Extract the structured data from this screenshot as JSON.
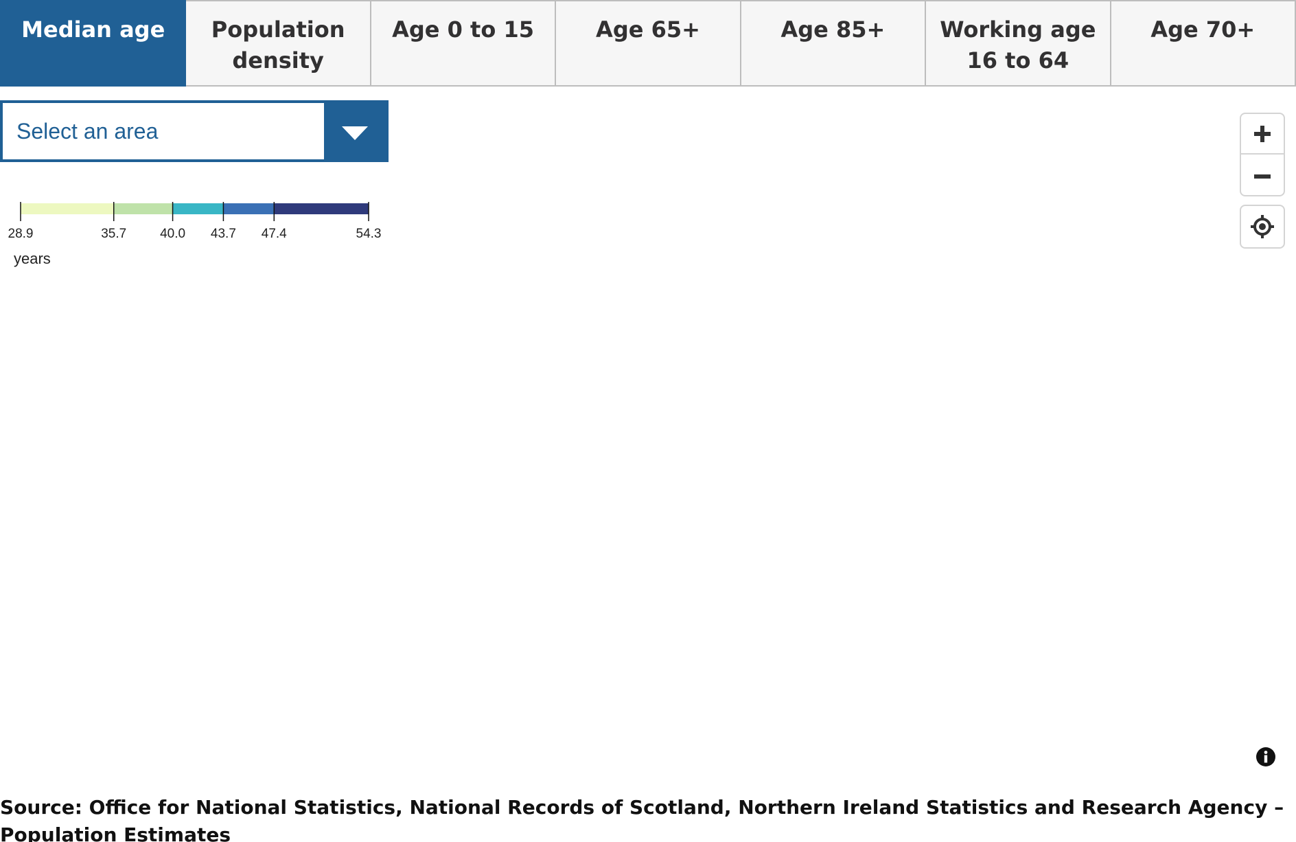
{
  "tabs": [
    {
      "label": "Median age",
      "active": true
    },
    {
      "label": "Population density",
      "active": false
    },
    {
      "label": "Age 0 to 15",
      "active": false
    },
    {
      "label": "Age 65+",
      "active": false
    },
    {
      "label": "Age 85+",
      "active": false
    },
    {
      "label": "Working age 16 to 64",
      "active": false
    },
    {
      "label": "Age 70+",
      "active": false
    }
  ],
  "area_select": {
    "placeholder": "Select an area"
  },
  "legend": {
    "breaks": [
      28.9,
      35.7,
      40.0,
      43.7,
      47.4,
      54.3
    ],
    "break_labels": [
      "28.9",
      "35.7",
      "40.0",
      "43.7",
      "47.4",
      "54.3"
    ],
    "colors": [
      "#edf8c0",
      "#bfe2a9",
      "#39b6c5",
      "#3a70b5",
      "#2f3a7b"
    ],
    "unit": "years"
  },
  "map_controls": {
    "zoom_in_icon": "plus-icon",
    "zoom_out_icon": "minus-icon",
    "locate_icon": "crosshair-icon",
    "info_icon": "info-icon"
  },
  "source": "Source: Office for National Statistics, National Records of Scotland, Northern Ireland Statistics and Research Agency – Population Estimates"
}
